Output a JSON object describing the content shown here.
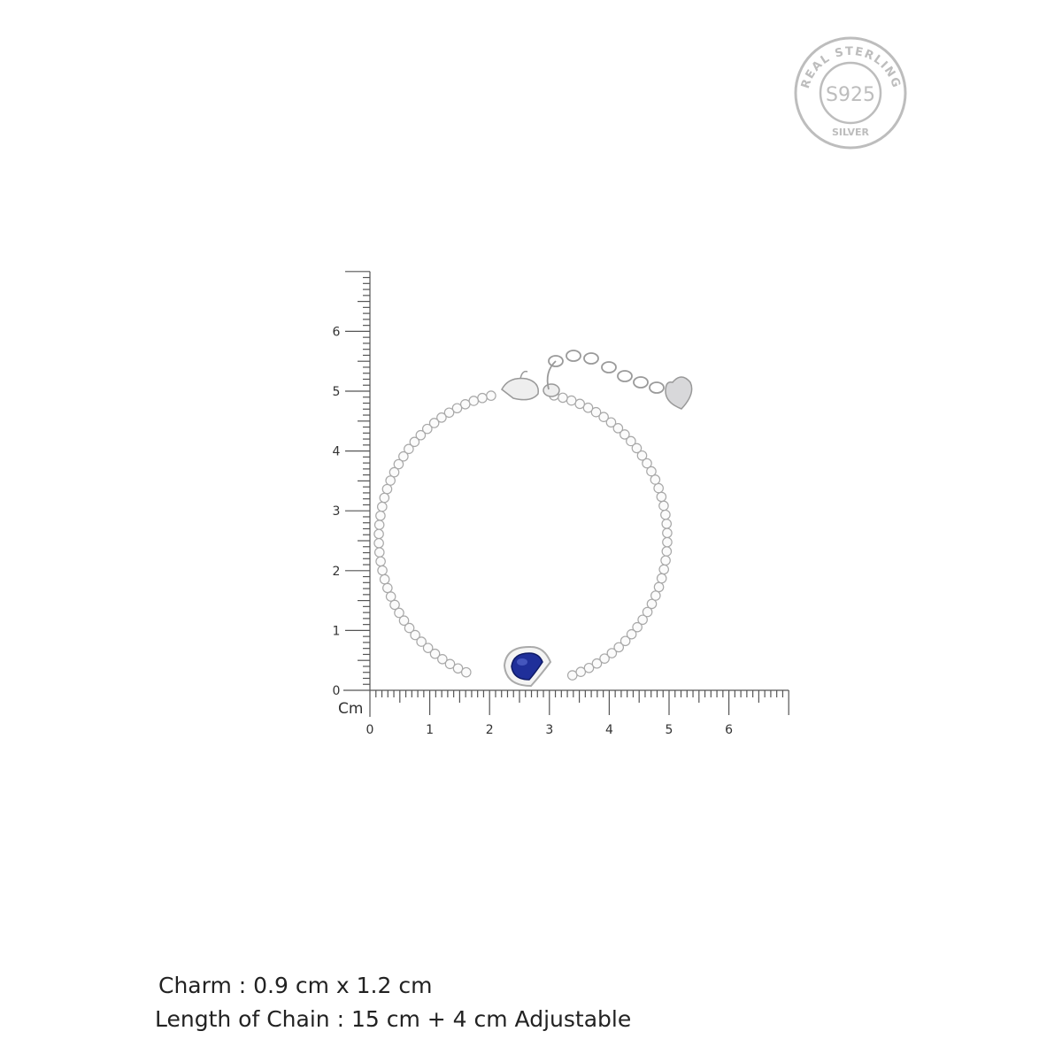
{
  "seal": {
    "outer_text": "REAL STERLING",
    "center_text": "S925",
    "bottom_text": "SILVER",
    "color": "#b8b8b8"
  },
  "ruler": {
    "unit_label": "Cm",
    "x_ticks": [
      "0",
      "1",
      "2",
      "3",
      "4",
      "5",
      "6"
    ],
    "y_ticks": [
      "0",
      "1",
      "2",
      "3",
      "4",
      "5",
      "6"
    ],
    "range_cm": [
      0,
      7
    ],
    "color": "#555555"
  },
  "product": {
    "gem_color": "#1f2f9a",
    "metal_color": "#c9c9cc"
  },
  "specs": {
    "charm": "Charm : 0.9 cm x 1.2 cm",
    "length": "Length of Chain : 15 cm + 4 cm Adjustable"
  }
}
